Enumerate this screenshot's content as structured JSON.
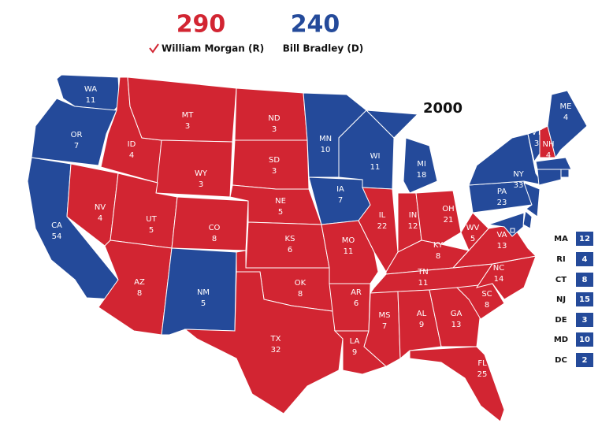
{
  "header": {
    "year": "2000"
  },
  "candidates": [
    {
      "name": "William Morgan (R)",
      "votes": 290,
      "color": "#d22532"
    },
    {
      "name": "Bill Bradley (D)",
      "votes": 240,
      "color": "#244a9a"
    }
  ],
  "states": [
    {
      "abbr": "WA",
      "votes": 11,
      "color": "#244a9a"
    },
    {
      "abbr": "OR",
      "votes": 7,
      "color": "#244a9a"
    },
    {
      "abbr": "CA",
      "votes": 54,
      "color": "#244a9a"
    },
    {
      "abbr": "NV",
      "votes": 4,
      "color": "#d22532"
    },
    {
      "abbr": "ID",
      "votes": 4,
      "color": "#d22532"
    },
    {
      "abbr": "MT",
      "votes": 3,
      "color": "#d22532"
    },
    {
      "abbr": "WY",
      "votes": 3,
      "color": "#d22532"
    },
    {
      "abbr": "UT",
      "votes": 5,
      "color": "#d22532"
    },
    {
      "abbr": "CO",
      "votes": 8,
      "color": "#d22532"
    },
    {
      "abbr": "AZ",
      "votes": 8,
      "color": "#d22532"
    },
    {
      "abbr": "NM",
      "votes": 5,
      "color": "#244a9a"
    },
    {
      "abbr": "ND",
      "votes": 3,
      "color": "#d22532"
    },
    {
      "abbr": "SD",
      "votes": 3,
      "color": "#d22532"
    },
    {
      "abbr": "NE",
      "votes": 5,
      "color": "#d22532"
    },
    {
      "abbr": "KS",
      "votes": 6,
      "color": "#d22532"
    },
    {
      "abbr": "OK",
      "votes": 8,
      "color": "#d22532"
    },
    {
      "abbr": "TX",
      "votes": 32,
      "color": "#d22532"
    },
    {
      "abbr": "MN",
      "votes": 10,
      "color": "#244a9a"
    },
    {
      "abbr": "IA",
      "votes": 7,
      "color": "#244a9a"
    },
    {
      "abbr": "MO",
      "votes": 11,
      "color": "#d22532"
    },
    {
      "abbr": "AR",
      "votes": 6,
      "color": "#d22532"
    },
    {
      "abbr": "LA",
      "votes": 9,
      "color": "#d22532"
    },
    {
      "abbr": "WI",
      "votes": 11,
      "color": "#244a9a"
    },
    {
      "abbr": "IL",
      "votes": 22,
      "color": "#d22532"
    },
    {
      "abbr": "MI",
      "votes": 18,
      "color": "#244a9a"
    },
    {
      "abbr": "IN",
      "votes": 12,
      "color": "#d22532"
    },
    {
      "abbr": "OH",
      "votes": 21,
      "color": "#d22532"
    },
    {
      "abbr": "KY",
      "votes": 8,
      "color": "#d22532"
    },
    {
      "abbr": "TN",
      "votes": 11,
      "color": "#d22532"
    },
    {
      "abbr": "MS",
      "votes": 7,
      "color": "#d22532"
    },
    {
      "abbr": "AL",
      "votes": 9,
      "color": "#d22532"
    },
    {
      "abbr": "GA",
      "votes": 13,
      "color": "#d22532"
    },
    {
      "abbr": "FL",
      "votes": 25,
      "color": "#d22532"
    },
    {
      "abbr": "SC",
      "votes": 8,
      "color": "#d22532"
    },
    {
      "abbr": "NC",
      "votes": 14,
      "color": "#d22532"
    },
    {
      "abbr": "VA",
      "votes": 13,
      "color": "#d22532"
    },
    {
      "abbr": "WV",
      "votes": 5,
      "color": "#d22532"
    },
    {
      "abbr": "PA",
      "votes": 23,
      "color": "#244a9a"
    },
    {
      "abbr": "NY",
      "votes": 33,
      "color": "#244a9a"
    },
    {
      "abbr": "VT",
      "votes": 3,
      "color": "#244a9a"
    },
    {
      "abbr": "NH",
      "votes": 4,
      "color": "#d22532"
    },
    {
      "abbr": "ME",
      "votes": 4,
      "color": "#244a9a"
    },
    {
      "abbr": "MA",
      "votes": 12,
      "color": "#244a9a"
    },
    {
      "abbr": "RI",
      "votes": 4,
      "color": "#244a9a"
    },
    {
      "abbr": "CT",
      "votes": 8,
      "color": "#244a9a"
    },
    {
      "abbr": "NJ",
      "votes": 15,
      "color": "#244a9a"
    },
    {
      "abbr": "DE",
      "votes": 3,
      "color": "#244a9a"
    },
    {
      "abbr": "MD",
      "votes": 10,
      "color": "#244a9a"
    },
    {
      "abbr": "DC",
      "votes": 2,
      "color": "#244a9a"
    }
  ]
}
